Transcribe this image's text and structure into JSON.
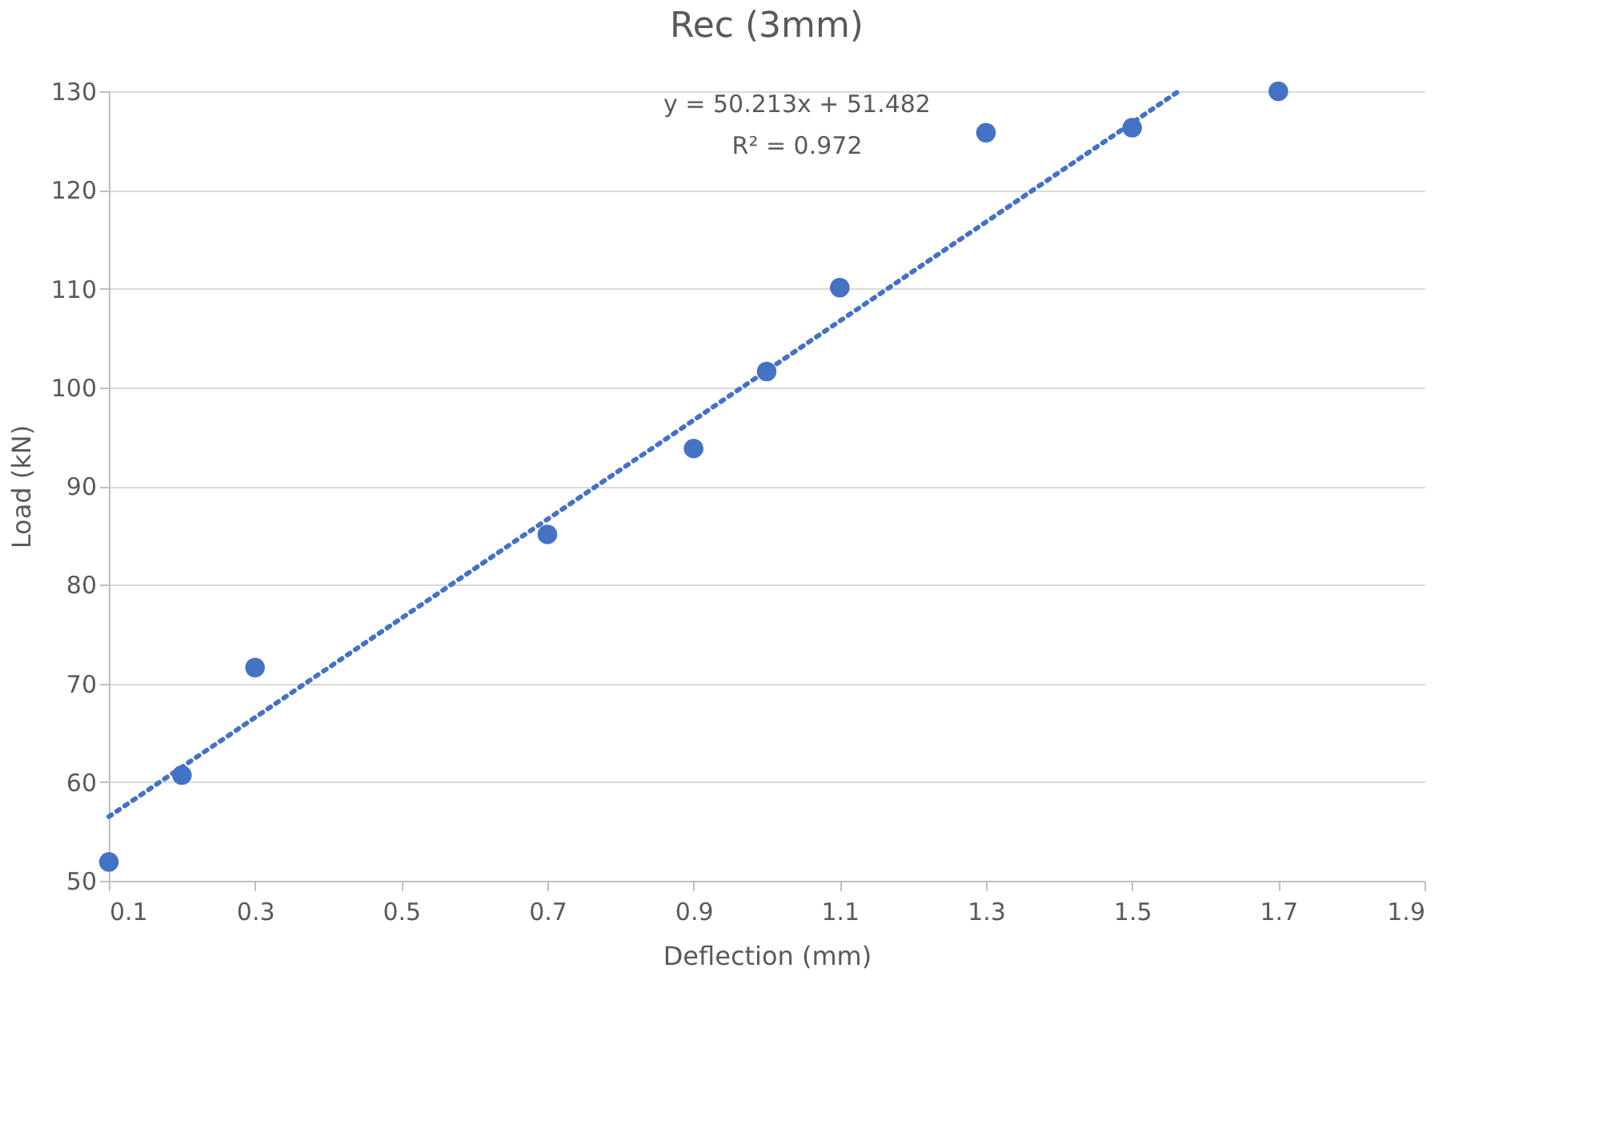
{
  "chart_data": {
    "type": "scatter",
    "title": "Rec (3mm)",
    "xlabel": "Deflection (mm)",
    "ylabel": "Load (kN)",
    "x": [
      0.1,
      0.2,
      0.3,
      0.7,
      0.9,
      1.0,
      1.1,
      1.3,
      1.5,
      1.7
    ],
    "series": [
      {
        "color": "#4472c4",
        "marker": "circle",
        "values": [
          51.9,
          60.7,
          71.6,
          85.1,
          93.8,
          101.6,
          110.1,
          125.8,
          126.3,
          130.0
        ]
      },
      {
        "type": "line",
        "color": "#4472c4",
        "marker": "none",
        "line_style": "dotted",
        "x": [
          0.1,
          1.5637
        ],
        "values": [
          56.5,
          130.0
        ]
      }
    ],
    "annotations": [
      "y = 50.213x + 51.482",
      "R² = 0.972"
    ],
    "xlim": [
      0.1,
      1.9
    ],
    "xticks": [
      0.1,
      0.3,
      0.5,
      0.7,
      0.9,
      1.1,
      1.3,
      1.5,
      1.7,
      1.9
    ],
    "ylim": [
      50,
      130
    ],
    "yticks": [
      50,
      60,
      70,
      80,
      90,
      100,
      110,
      120,
      130
    ],
    "grid": "y"
  }
}
